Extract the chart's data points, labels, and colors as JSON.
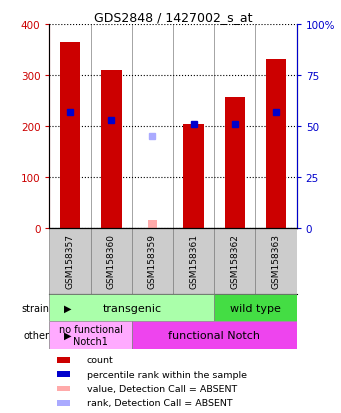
{
  "title": "GDS2848 / 1427002_s_at",
  "samples": [
    "GSM158357",
    "GSM158360",
    "GSM158359",
    "GSM158361",
    "GSM158362",
    "GSM158363"
  ],
  "count_values": [
    365,
    310,
    null,
    203,
    257,
    332
  ],
  "percentile_values": [
    57,
    53,
    null,
    51,
    51,
    57
  ],
  "absent_value": 15,
  "absent_rank": 45,
  "absent_sample_index": 2,
  "ylim_left": [
    0,
    400
  ],
  "ylim_right": [
    0,
    100
  ],
  "yticks_left": [
    0,
    100,
    200,
    300,
    400
  ],
  "yticks_right": [
    0,
    25,
    50,
    75,
    100
  ],
  "yticklabels_right": [
    "0",
    "25",
    "50",
    "75",
    "100%"
  ],
  "bar_color": "#cc0000",
  "percentile_color": "#0000cc",
  "absent_bar_color": "#ffaaaa",
  "absent_rank_color": "#aaaaff",
  "label_bg_color": "#cccccc",
  "strain_transgenic_color": "#aaffaa",
  "strain_wildtype_color": "#44dd44",
  "other_nofunc_color": "#ffaaff",
  "other_func_color": "#ee44ee",
  "strain_label": "strain",
  "other_label": "other",
  "transgenic_label": "transgenic",
  "wildtype_label": "wild type",
  "nofunc_label": "no functional\nNotch1",
  "func_label": "functional Notch",
  "legend_items": [
    {
      "label": "count",
      "color": "#cc0000"
    },
    {
      "label": "percentile rank within the sample",
      "color": "#0000cc"
    },
    {
      "label": "value, Detection Call = ABSENT",
      "color": "#ffaaaa"
    },
    {
      "label": "rank, Detection Call = ABSENT",
      "color": "#aaaaff"
    }
  ],
  "transgenic_count": 4,
  "nofunc_count": 2
}
